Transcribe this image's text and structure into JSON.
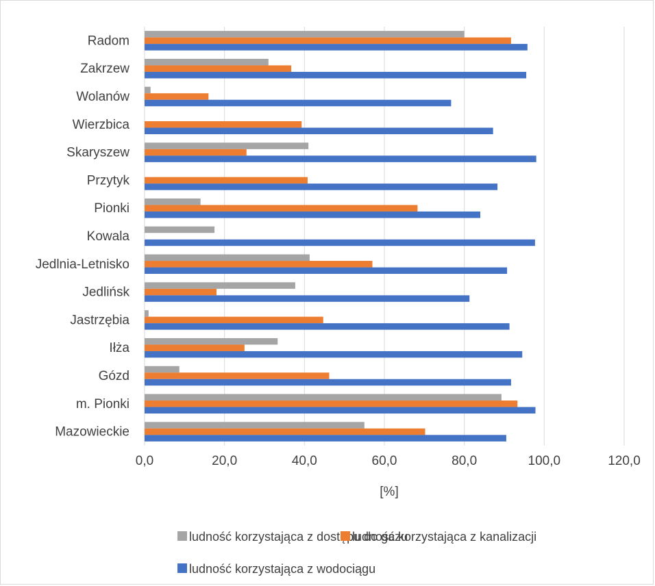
{
  "chart_data": {
    "type": "bar",
    "orientation": "horizontal",
    "categories": [
      "Radom",
      "Zakrzew",
      "Wolanów",
      "Wierzbica",
      "Skaryszew",
      "Przytyk",
      "Pionki",
      "Kowala",
      "Jedlnia-Letnisko",
      "Jedlińsk",
      "Jastrzębia",
      "Iłża",
      "Gózd",
      "m. Pionki",
      "Mazowieckie"
    ],
    "series": [
      {
        "name": "ludność korzystająca z dostępu do gazu",
        "color": "#a5a5a5",
        "values": [
          80.0,
          31.0,
          1.5,
          0,
          41.0,
          0,
          14.0,
          17.5,
          41.3,
          37.7,
          1.0,
          33.3,
          8.7,
          89.3,
          55.0
        ]
      },
      {
        "name": "ludność korzystająca z kanalizacji",
        "color": "#ed7d31",
        "values": [
          91.7,
          36.7,
          16.0,
          39.3,
          25.5,
          40.8,
          68.3,
          0,
          57.0,
          18.0,
          44.7,
          25.0,
          46.2,
          93.3,
          70.2
        ]
      },
      {
        "name": "ludność korzystająca z wodociągu",
        "color": "#4472c4",
        "values": [
          95.8,
          95.5,
          76.7,
          87.2,
          98.0,
          88.3,
          84.0,
          97.7,
          90.7,
          81.3,
          91.3,
          94.5,
          91.7,
          97.8,
          90.5
        ]
      }
    ],
    "xlabel": "[%]",
    "xlim": [
      0,
      120
    ],
    "xticks": [
      "0,0",
      "20,0",
      "40,0",
      "60,0",
      "80,0",
      "100,0",
      "120,0"
    ],
    "grid": "vertical",
    "legend": "bottom"
  }
}
